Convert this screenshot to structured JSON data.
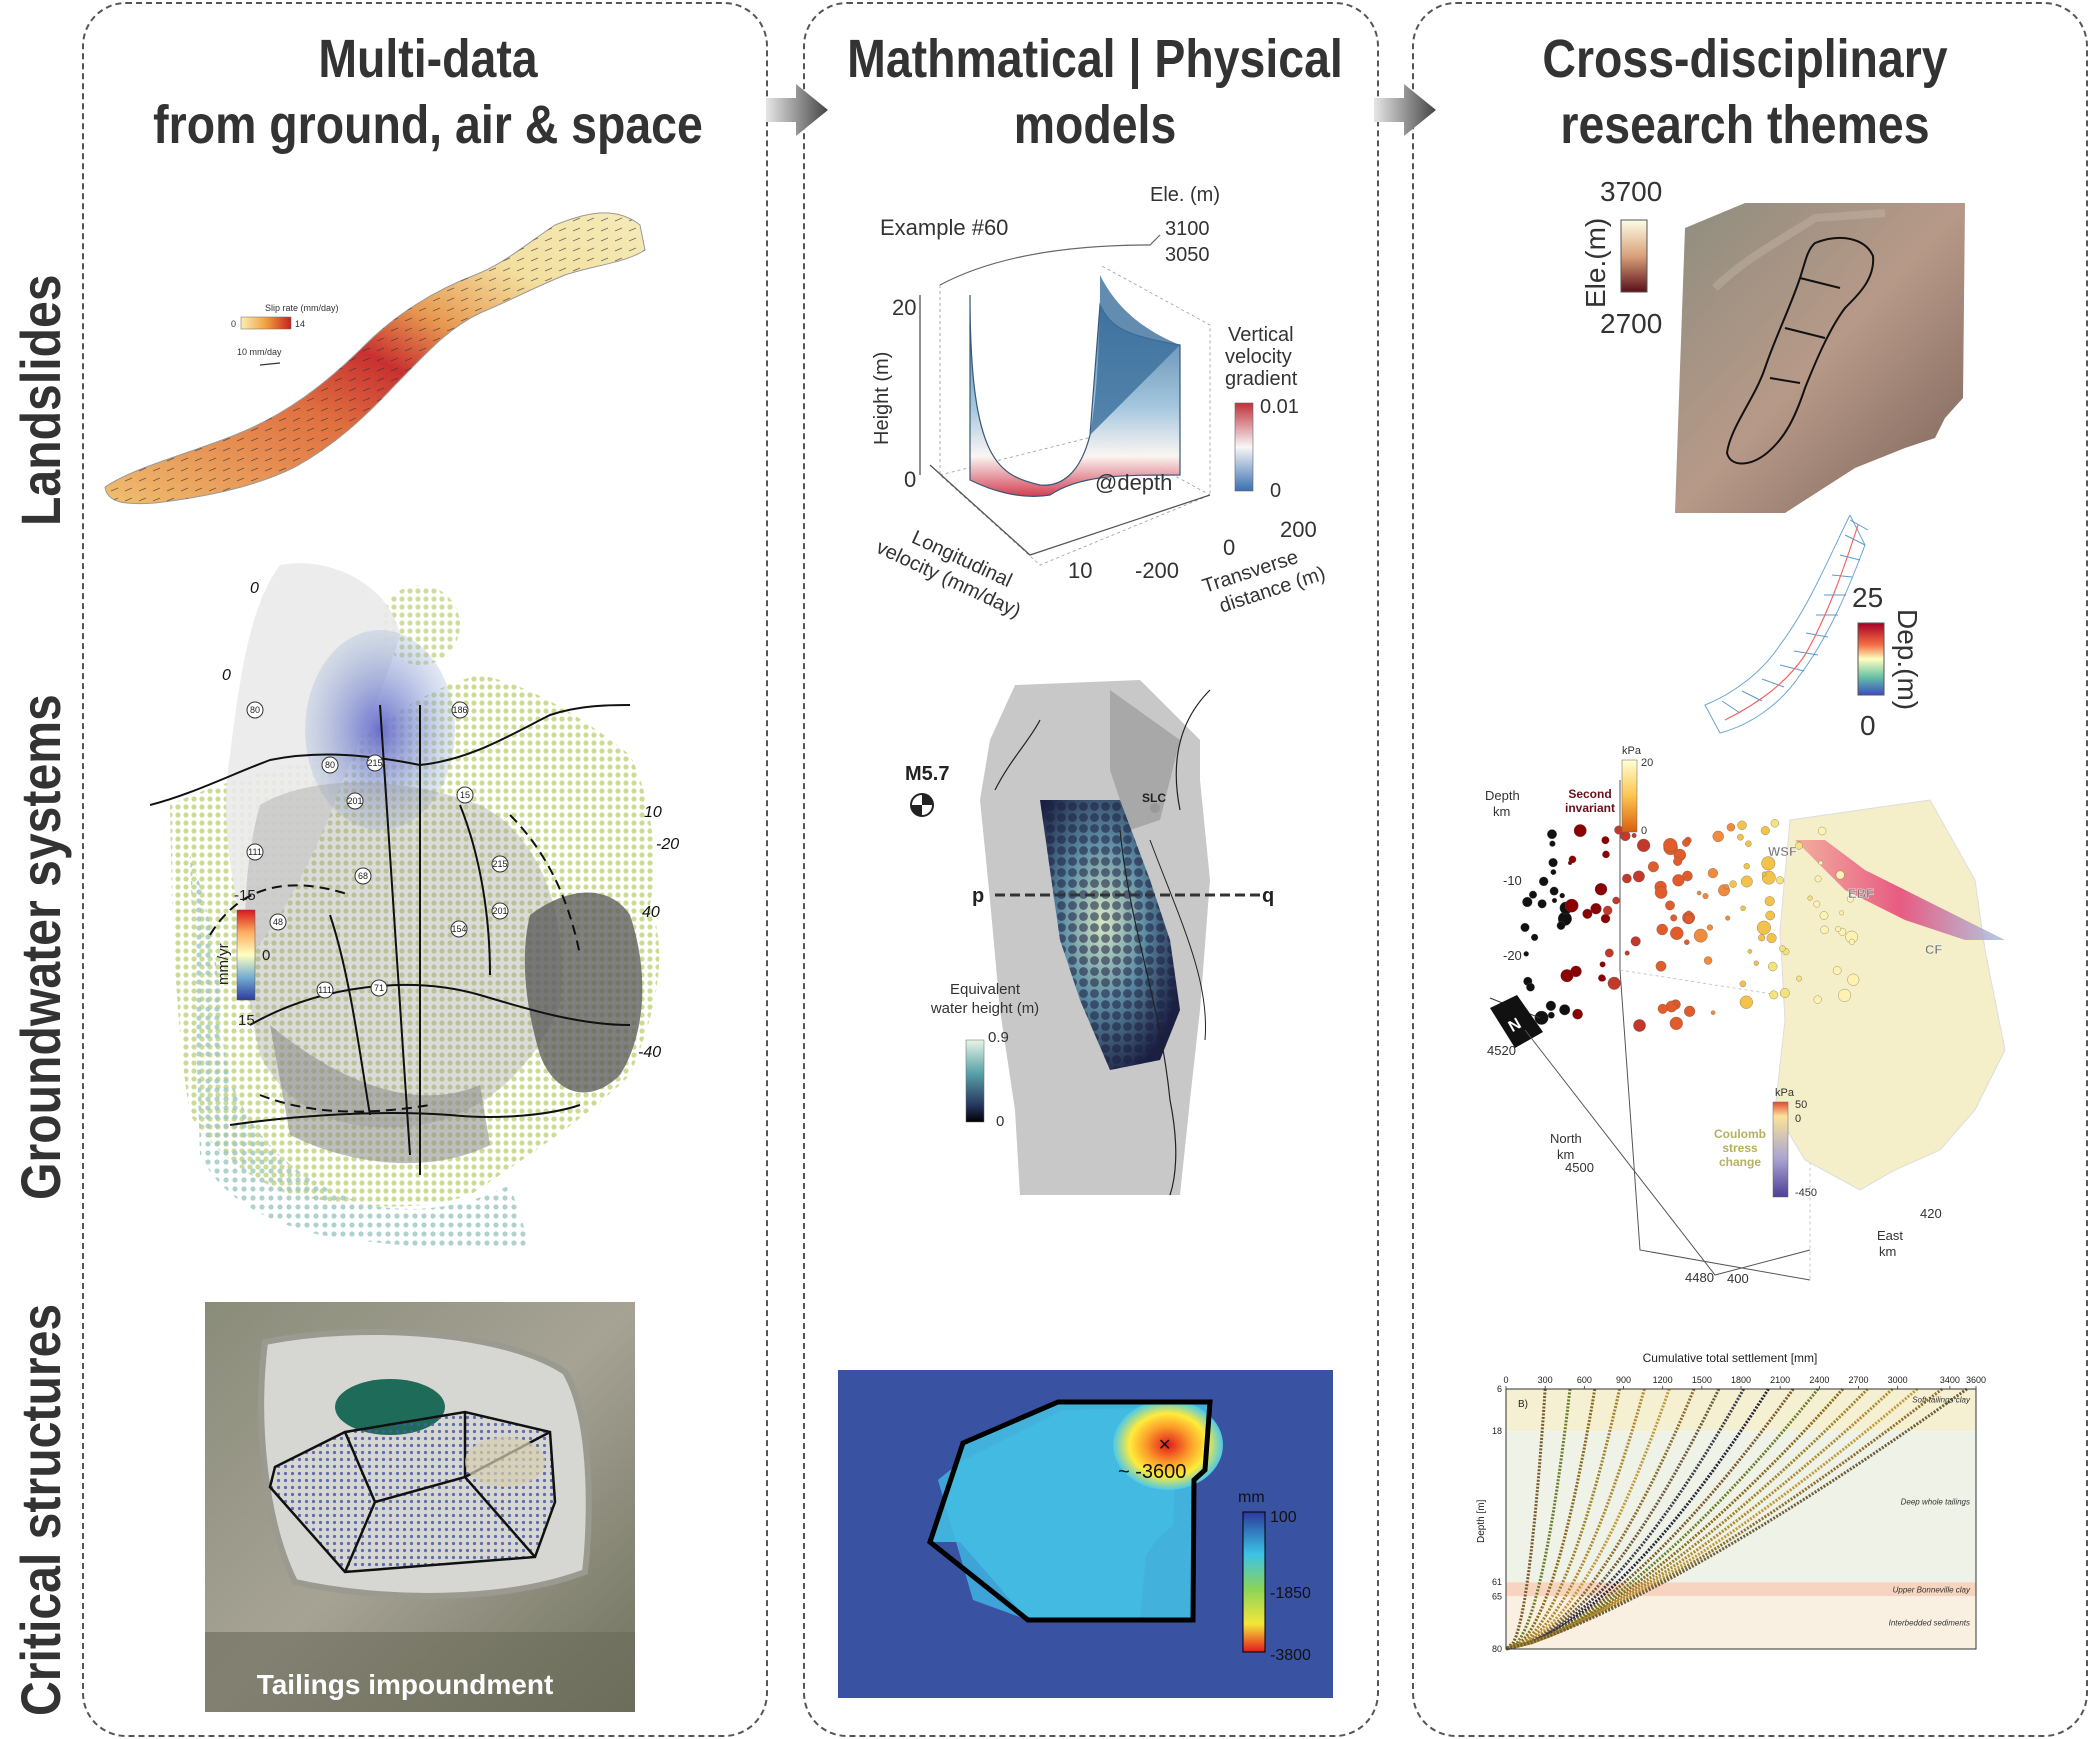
{
  "columns": [
    {
      "title_line1": "Multi-data",
      "title_line2": "from ground, air & space"
    },
    {
      "title_line1": "Mathmatical | Physical",
      "title_line2": "models"
    },
    {
      "title_line1": "Cross-disciplinary",
      "title_line2": "research themes"
    }
  ],
  "rows": {
    "landslides": "Landslides",
    "groundwater": "Groundwater systems",
    "critical": "Critical structures"
  },
  "landslide_map": {
    "legend_title": "Slip rate (mm/day)",
    "legend_min": "0",
    "legend_max": "14",
    "vector_scale": "10 mm/day"
  },
  "groundwater_map": {
    "colorbar_top": "-15",
    "colorbar_mid": "0",
    "colorbar_bottom": "15",
    "colorbar_unit": "mm/yr",
    "contour_labels": [
      "0",
      "0",
      "10",
      "-20",
      "40",
      "-40"
    ],
    "highway_labels": [
      "80",
      "186",
      "80",
      "215",
      "15",
      "201",
      "111",
      "68",
      "48",
      "154",
      "215",
      "201",
      "111",
      "71"
    ]
  },
  "tailings_photo": {
    "label": "Tailings impoundment"
  },
  "velocity_model": {
    "example": "Example #60",
    "ele_unit": "Ele. (m)",
    "ele_ticks": [
      "3100",
      "3050"
    ],
    "z_label": "Height (m)",
    "z_ticks": [
      "20",
      "0"
    ],
    "x_label_line1": "Longitudinal",
    "x_label_line2": "velocity (mm/day)",
    "x_tick": "10",
    "y_label_line1": "Transverse",
    "y_label_line2": "distance (m)",
    "y_ticks": [
      "-200",
      "0",
      "200"
    ],
    "colorbar_title_line1": "Vertical",
    "colorbar_title_line2": "velocity",
    "colorbar_title_line3": "gradient",
    "colorbar_max": "0.01",
    "colorbar_min": "0",
    "depth_label": "@depth"
  },
  "gravity_model": {
    "event": "M5.7",
    "city": "SLC",
    "profile_start": "p",
    "profile_end": "q",
    "colorbar_title_line1": "Equivalent",
    "colorbar_title_line2": "water height (m)",
    "colorbar_max": "0.9",
    "colorbar_min": "0"
  },
  "deformation_model": {
    "max_label": "~ -3600",
    "colorbar_unit": "mm",
    "colorbar_ticks": [
      "100",
      "-1850",
      "-3800"
    ]
  },
  "dem_figure": {
    "axis_label": "Ele.(m)",
    "max": "3700",
    "min": "2700"
  },
  "depth_figure": {
    "axis_label": "Dep.(m)",
    "max": "25",
    "min": "0"
  },
  "fault_figure": {
    "depth_label_line1": "Depth",
    "depth_label_line2": "km",
    "depth_ticks": [
      "-10",
      "-20"
    ],
    "north_label_line1": "North",
    "north_label_line2": "km",
    "north_ticks": [
      "4520",
      "4500",
      "4480"
    ],
    "east_label_line1": "East",
    "east_label_line2": "km",
    "east_ticks": [
      "420",
      "400"
    ],
    "invariant_title_line1": "Second",
    "invariant_title_line2": "invariant",
    "invariant_unit": "kPa",
    "invariant_max": "20",
    "invariant_min": "0",
    "coulomb_title_line1": "Coulomb",
    "coulomb_title_line2": "stress",
    "coulomb_title_line3": "change",
    "coulomb_unit": "kPa",
    "coulomb_ticks": [
      "50",
      "0",
      "-450"
    ],
    "fault_labels": [
      "WSF",
      "EBF",
      "CF"
    ],
    "compass": "N"
  },
  "settlement_chart": {
    "title": "Cumulative total settlement [mm]",
    "x_ticks": [
      "0",
      "300",
      "600",
      "900",
      "1200",
      "1500",
      "1800",
      "2100",
      "2400",
      "2700",
      "3000",
      "3400",
      "3600"
    ],
    "ylabel": "Depth [m]",
    "y_ticks": [
      "6",
      "18",
      "61",
      "65",
      "80"
    ],
    "panel_label": "B)",
    "layers": [
      "Soft tailings clay",
      "Deep whole tailings",
      "Upper Bonneville clay",
      "Interbedded sediments"
    ],
    "colors": {
      "soft": "#f6f0d3",
      "deep": "#eef2e7",
      "clay": "#f7d4bf",
      "sed": "#faf0e1"
    }
  }
}
